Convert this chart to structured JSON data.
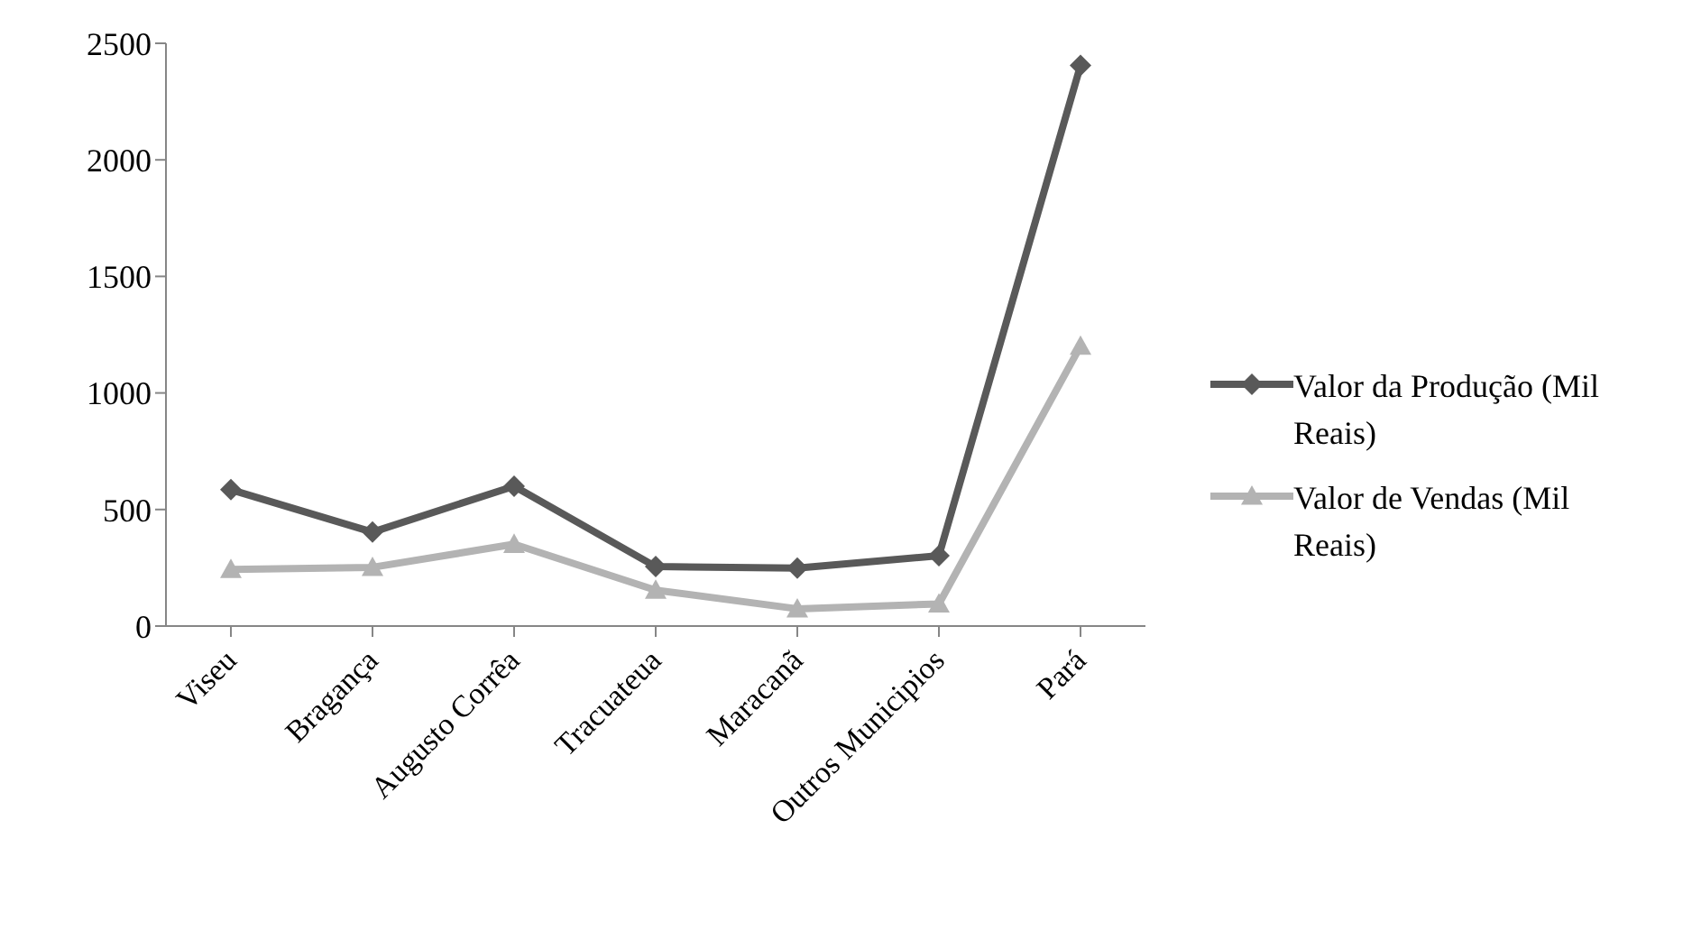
{
  "chart_data": {
    "type": "line",
    "categories": [
      "Viseu",
      "Bragança",
      "Augusto Corrêa",
      "Tracuateua",
      "Maracanã",
      "Outros Municipios",
      "Pará"
    ],
    "series": [
      {
        "name": "Valor da Produção (Mil Reais)",
        "color": "#595959",
        "marker": "diamond",
        "values": [
          585,
          403,
          600,
          255,
          249,
          302,
          2405
        ]
      },
      {
        "name": "Valor de Vendas (Mil Reais)",
        "color": "#b3b3b3",
        "marker": "triangle",
        "values": [
          243,
          252,
          351,
          154,
          74,
          95,
          1201
        ]
      }
    ],
    "ylim": [
      0,
      2500
    ],
    "yticks": [
      0,
      500,
      1000,
      1500,
      2000,
      2500
    ],
    "grid": false,
    "legend": "right",
    "line_style": "solid"
  }
}
